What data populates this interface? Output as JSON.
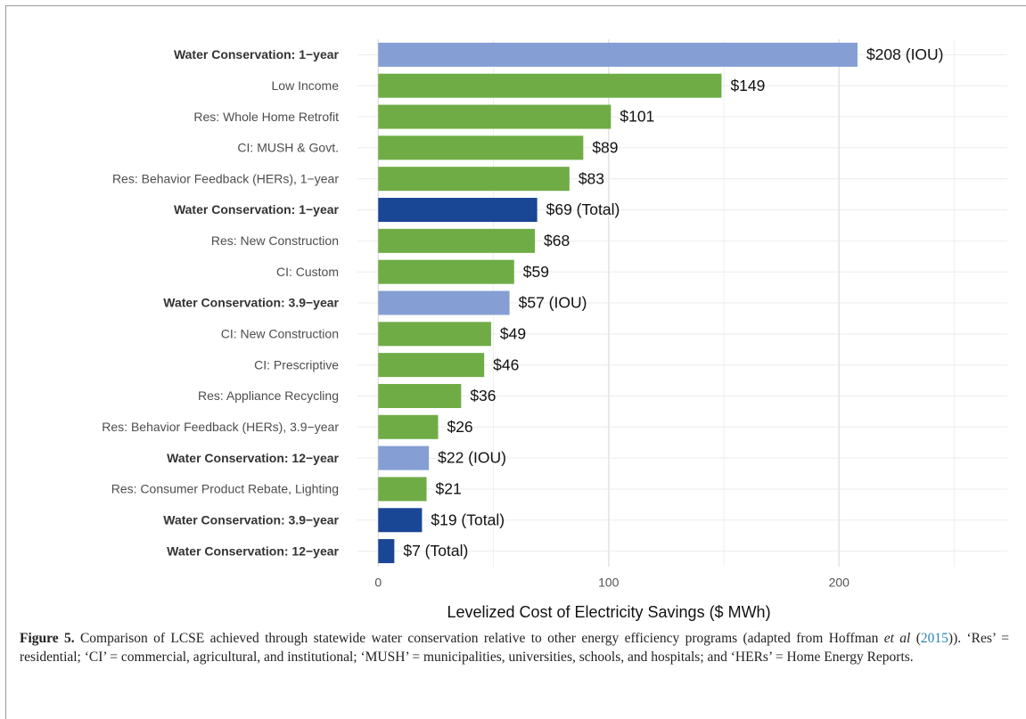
{
  "chart_data": {
    "type": "barh",
    "categories": [
      "Water Conservation: 1−year",
      "Low Income",
      "Res: Whole Home Retrofit",
      "CI: MUSH & Govt.",
      "Res: Behavior Feedback (HERs), 1−year",
      "Water Conservation: 1−year",
      "Res: New Construction",
      "CI: Custom",
      "Water Conservation: 3.9−year",
      "CI: New Construction",
      "CI: Prescriptive",
      "Res: Appliance Recycling",
      "Res: Behavior Feedback (HERs), 3.9−year",
      "Water Conservation: 12−year",
      "Res: Consumer Product Rebate, Lighting",
      "Water Conservation: 3.9−year",
      "Water Conservation: 12−year"
    ],
    "values": [
      208,
      149,
      101,
      89,
      83,
      69,
      68,
      59,
      57,
      49,
      46,
      36,
      26,
      22,
      21,
      19,
      7
    ],
    "value_labels": [
      "$208 (IOU)",
      "$149",
      "$101",
      "$89",
      "$83",
      "$69 (Total)",
      "$68",
      "$59",
      "$57 (IOU)",
      "$49",
      "$46",
      "$36",
      "$26",
      "$22 (IOU)",
      "$21",
      "$19 (Total)",
      "$7 (Total)"
    ],
    "colors": [
      "#859fd4",
      "#6fac46",
      "#6fac46",
      "#6fac46",
      "#6fac46",
      "#1a4696",
      "#6fac46",
      "#6fac46",
      "#859fd4",
      "#6fac46",
      "#6fac46",
      "#6fac46",
      "#6fac46",
      "#859fd4",
      "#6fac46",
      "#1a4696",
      "#1a4696"
    ],
    "bold_labels": [
      true,
      false,
      false,
      false,
      false,
      true,
      false,
      false,
      true,
      false,
      false,
      false,
      false,
      true,
      false,
      true,
      true
    ],
    "xlabel": "Levelized Cost of Electricity Savings ($ MWh)",
    "xlim": [
      -9,
      273
    ],
    "xticks": [
      0,
      100,
      200
    ],
    "xminor": [
      50,
      150,
      250
    ],
    "grid": true
  },
  "caption": {
    "label": "Figure 5.",
    "text_1": " Comparison of LCSE achieved through statewide water conservation relative to other energy efficiency programs (adapted from Hoffman ",
    "italic": "et al",
    "text_2": " (",
    "link": "2015",
    "text_3": ")). ‘Res’ = residential; ‘CI’ = commercial, agricultural, and institutional; ‘MUSH’ = municipalities, universities, schools, and hospitals; and ‘HERs’ = Home Energy Reports."
  }
}
